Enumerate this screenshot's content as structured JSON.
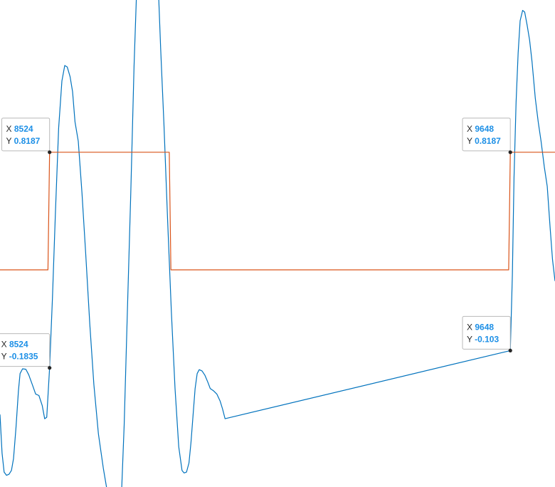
{
  "chart_data": {
    "type": "line",
    "xlim": [
      8403,
      9757
    ],
    "ylim": [
      -0.7372,
      1.5263
    ],
    "grid": false,
    "legend": "none",
    "series": [
      {
        "color": "#0072bd",
        "points": [
          [
            8403,
            -0.4
          ],
          [
            8408,
            -0.58
          ],
          [
            8413,
            -0.668
          ],
          [
            8419,
            -0.683
          ],
          [
            8425,
            -0.678
          ],
          [
            8431,
            -0.66
          ],
          [
            8436,
            -0.605
          ],
          [
            8442,
            -0.46
          ],
          [
            8448,
            -0.29
          ],
          [
            8452,
            -0.21
          ],
          [
            8458,
            -0.188
          ],
          [
            8466,
            -0.19
          ],
          [
            8473,
            -0.215
          ],
          [
            8482,
            -0.262
          ],
          [
            8490,
            -0.305
          ],
          [
            8498,
            -0.312
          ],
          [
            8506,
            -0.358
          ],
          [
            8512,
            -0.42
          ],
          [
            8517,
            -0.413
          ],
          [
            8524,
            -0.1835
          ],
          [
            8531,
            0.14
          ],
          [
            8538,
            0.53
          ],
          [
            8546,
            0.93
          ],
          [
            8554,
            1.15
          ],
          [
            8561,
            1.222
          ],
          [
            8567,
            1.215
          ],
          [
            8574,
            1.17
          ],
          [
            8580,
            1.1
          ],
          [
            8586,
            0.96
          ],
          [
            8594,
            0.87
          ],
          [
            8603,
            0.63
          ],
          [
            8612,
            0.35
          ],
          [
            8622,
            0.02
          ],
          [
            8632,
            -0.26
          ],
          [
            8643,
            -0.49
          ],
          [
            8655,
            -0.65
          ],
          [
            8663,
            -0.74
          ],
          [
            8700,
            -0.74
          ],
          [
            8706,
            -0.45
          ],
          [
            8714,
            0.1
          ],
          [
            8722,
            0.63
          ],
          [
            8730,
            1.22
          ],
          [
            8736,
            1.55
          ],
          [
            8790,
            1.55
          ],
          [
            8795,
            1.3
          ],
          [
            8803,
            0.95
          ],
          [
            8812,
            0.5
          ],
          [
            8821,
            0.08
          ],
          [
            8830,
            -0.28
          ],
          [
            8839,
            -0.55
          ],
          [
            8847,
            -0.66
          ],
          [
            8852,
            -0.672
          ],
          [
            8858,
            -0.668
          ],
          [
            8864,
            -0.625
          ],
          [
            8869,
            -0.53
          ],
          [
            8874,
            -0.405
          ],
          [
            8879,
            -0.28
          ],
          [
            8884,
            -0.21
          ],
          [
            8889,
            -0.192
          ],
          [
            8896,
            -0.198
          ],
          [
            8903,
            -0.218
          ],
          [
            8910,
            -0.25
          ],
          [
            8916,
            -0.28
          ],
          [
            8924,
            -0.29
          ],
          [
            8932,
            -0.305
          ],
          [
            8940,
            -0.338
          ],
          [
            8946,
            -0.375
          ],
          [
            8952,
            -0.42
          ],
          [
            9648,
            -0.103
          ],
          [
            9653,
            0.25
          ],
          [
            9657,
            0.7
          ],
          [
            9662,
            1.05
          ],
          [
            9667,
            1.28
          ],
          [
            9672,
            1.43
          ],
          [
            9678,
            1.478
          ],
          [
            9683,
            1.47
          ],
          [
            9689,
            1.41
          ],
          [
            9695,
            1.34
          ],
          [
            9701,
            1.24
          ],
          [
            9709,
            1.07
          ],
          [
            9716,
            0.96
          ],
          [
            9723,
            0.87
          ],
          [
            9731,
            0.75
          ],
          [
            9738,
            0.66
          ],
          [
            9745,
            0.47
          ],
          [
            9751,
            0.32
          ],
          [
            9757,
            0.22
          ]
        ]
      },
      {
        "color": "#d95319",
        "points": [
          [
            8403,
            0.272
          ],
          [
            8520,
            0.272
          ],
          [
            8524,
            0.8187
          ],
          [
            8816,
            0.8187
          ],
          [
            8820,
            0.272
          ],
          [
            9644,
            0.272
          ],
          [
            9648,
            0.8187
          ],
          [
            9757,
            0.8187
          ]
        ]
      }
    ],
    "datatips": [
      {
        "x_label": "X",
        "x_value": "8524",
        "y_label": "Y",
        "y_value": "0.8187",
        "x": 8524,
        "y": 0.8187
      },
      {
        "x_label": "X",
        "x_value": "8524",
        "y_label": "Y",
        "y_value": "-0.1835",
        "x": 8524,
        "y": -0.1835
      },
      {
        "x_label": "X",
        "x_value": "9648",
        "y_label": "Y",
        "y_value": "0.8187",
        "x": 9648,
        "y": 0.8187
      },
      {
        "x_label": "X",
        "x_value": "9648",
        "y_label": "Y",
        "y_value": "-0.103",
        "x": 9648,
        "y": -0.103
      }
    ]
  }
}
